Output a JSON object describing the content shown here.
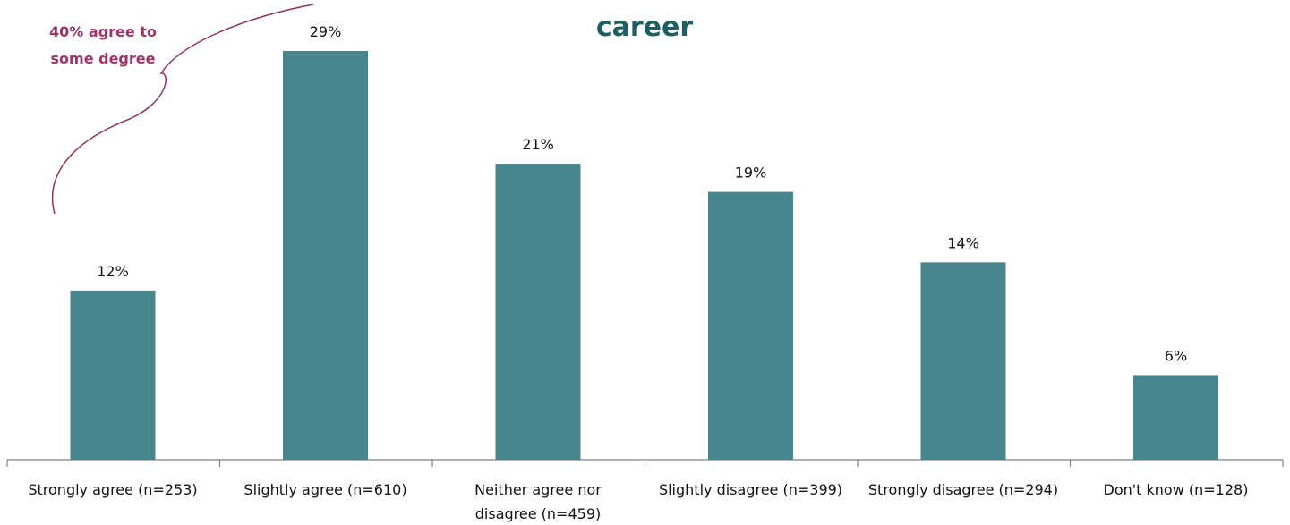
{
  "chart_data": {
    "type": "bar",
    "title": "career",
    "categories": [
      "Strongly agree (n=253)",
      "Slightly agree (n=610)",
      "Neither agree nor disagree (n=459)",
      "Slightly disagree (n=399)",
      "Strongly disagree (n=294)",
      "Don't know (n=128)"
    ],
    "category_lines": [
      [
        "Strongly agree (n=253)"
      ],
      [
        "Slightly agree (n=610)"
      ],
      [
        "Neither agree nor",
        "disagree (n=459)"
      ],
      [
        "Slightly disagree (n=399)"
      ],
      [
        "Strongly disagree (n=294)"
      ],
      [
        "Don't know (n=128)"
      ]
    ],
    "values": [
      12,
      29,
      21,
      19,
      14,
      6
    ],
    "value_labels": [
      "12%",
      "29%",
      "21%",
      "19%",
      "14%",
      "6%"
    ],
    "xlabel": "",
    "ylabel": "",
    "ylim": [
      0,
      29
    ],
    "grid": false,
    "legend": "none",
    "bar_color": "#46848e",
    "annotations": [
      {
        "text_lines": [
          "40% agree to",
          "some degree"
        ],
        "color": "#a0336a"
      }
    ]
  }
}
